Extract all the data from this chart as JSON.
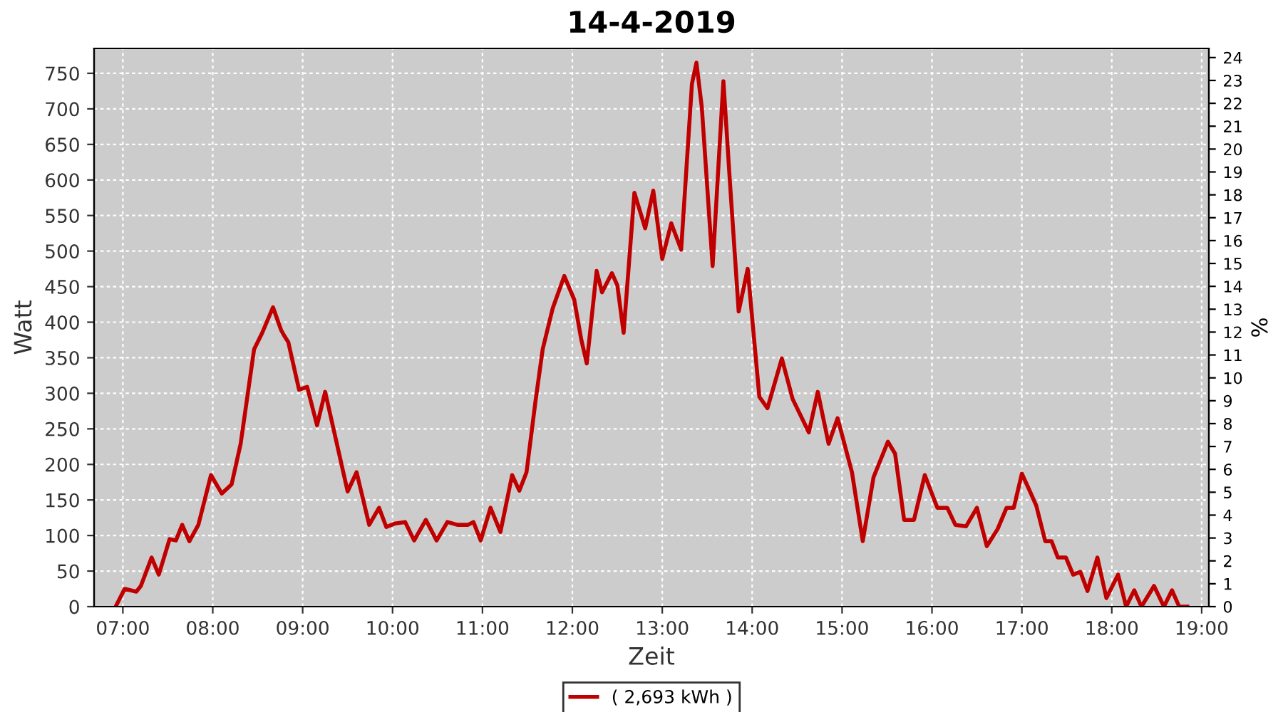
{
  "chart_data": {
    "type": "line",
    "title": "14-4-2019",
    "xlabel": "Zeit",
    "ylabel": "Watt",
    "y2label": "%",
    "xlim": [
      6.68,
      19.08
    ],
    "xticks": [
      {
        "value": 7,
        "label": "07:00"
      },
      {
        "value": 8,
        "label": "08:00"
      },
      {
        "value": 9,
        "label": "09:00"
      },
      {
        "value": 10,
        "label": "10:00"
      },
      {
        "value": 11,
        "label": "11:00"
      },
      {
        "value": 12,
        "label": "12:00"
      },
      {
        "value": 13,
        "label": "13:00"
      },
      {
        "value": 14,
        "label": "14:00"
      },
      {
        "value": 15,
        "label": "15:00"
      },
      {
        "value": 16,
        "label": "16:00"
      },
      {
        "value": 17,
        "label": "17:00"
      },
      {
        "value": 18,
        "label": "18:00"
      },
      {
        "value": 19,
        "label": "19:00"
      }
    ],
    "ylim": [
      0,
      785
    ],
    "yticks": [
      0,
      50,
      100,
      150,
      200,
      250,
      300,
      350,
      400,
      450,
      500,
      550,
      600,
      650,
      700,
      750
    ],
    "y2lim": [
      0,
      24.4
    ],
    "y2ticks": [
      0,
      1,
      2,
      3,
      4,
      5,
      6,
      7,
      8,
      9,
      10,
      11,
      12,
      13,
      14,
      15,
      16,
      17,
      18,
      19,
      20,
      21,
      22,
      23,
      24
    ],
    "grid": true,
    "legend": "bottom",
    "marker": "none",
    "line_style": "solid",
    "series": [
      {
        "name": "( 2,693 kWh )",
        "color": "#c00000",
        "x": [
          6.92,
          7.02,
          7.15,
          7.2,
          7.32,
          7.4,
          7.52,
          7.59,
          7.66,
          7.74,
          7.84,
          7.98,
          8.1,
          8.21,
          8.31,
          8.46,
          8.55,
          8.67,
          8.76,
          8.79,
          8.84,
          8.96,
          9.05,
          9.16,
          9.25,
          9.37,
          9.5,
          9.6,
          9.74,
          9.85,
          9.93,
          10.03,
          10.14,
          10.24,
          10.37,
          10.49,
          10.61,
          10.72,
          10.84,
          10.9,
          10.98,
          11.09,
          11.2,
          11.33,
          11.41,
          11.49,
          11.59,
          11.67,
          11.78,
          11.91,
          12.02,
          12.1,
          12.16,
          12.27,
          12.33,
          12.44,
          12.5,
          12.57,
          12.69,
          12.81,
          12.9,
          13.0,
          13.1,
          13.21,
          13.33,
          13.38,
          13.44,
          13.56,
          13.68,
          13.75,
          13.85,
          13.95,
          14.08,
          14.17,
          14.33,
          14.45,
          14.63,
          14.73,
          14.85,
          14.95,
          15.11,
          15.23,
          15.35,
          15.51,
          15.59,
          15.69,
          15.8,
          15.92,
          16.06,
          16.17,
          16.26,
          16.38,
          16.5,
          16.61,
          16.73,
          16.83,
          16.91,
          17.0,
          17.09,
          17.16,
          17.26,
          17.33,
          17.4,
          17.49,
          17.57,
          17.65,
          17.73,
          17.84,
          17.94,
          18.07,
          18.16,
          18.25,
          18.33,
          18.47,
          18.58,
          18.67,
          18.75,
          18.84
        ],
        "values": [
          0,
          25,
          21,
          29,
          69,
          45,
          95,
          93,
          115,
          92,
          115,
          185,
          159,
          172,
          229,
          362,
          385,
          421,
          389,
          382,
          372,
          305,
          309,
          255,
          302,
          235,
          162,
          189,
          115,
          139,
          112,
          117,
          119,
          93,
          122,
          93,
          119,
          115,
          115,
          119,
          93,
          139,
          105,
          185,
          163,
          189,
          289,
          362,
          419,
          465,
          432,
          375,
          342,
          472,
          442,
          469,
          452,
          385,
          582,
          532,
          585,
          489,
          539,
          502,
          735,
          765,
          702,
          479,
          739,
          602,
          415,
          475,
          295,
          279,
          349,
          292,
          245,
          302,
          229,
          265,
          189,
          92,
          182,
          232,
          215,
          122,
          122,
          185,
          139,
          139,
          115,
          113,
          139,
          85,
          109,
          139,
          139,
          187,
          162,
          142,
          92,
          92,
          69,
          69,
          45,
          49,
          22,
          69,
          12,
          45,
          0,
          23,
          0,
          29,
          0,
          23,
          0,
          0
        ]
      }
    ]
  }
}
